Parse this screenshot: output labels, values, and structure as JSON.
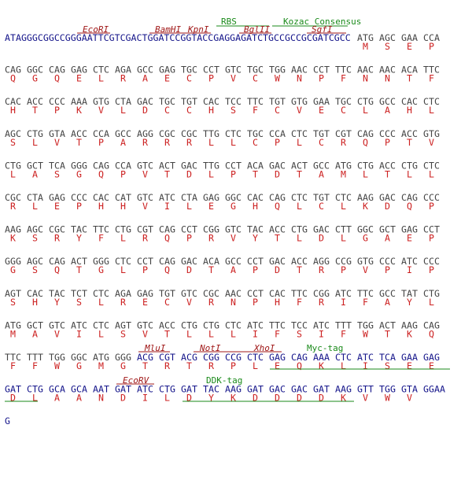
{
  "aa_color": "#cc2020",
  "annotations": [
    {
      "text": "RBS",
      "color": "#1a8a1a"
    },
    {
      "text": "Kozac Consensus",
      "color": "#1a8a1a"
    },
    {
      "text": "EcoRI",
      "color": "#a01818"
    },
    {
      "text": "BamHI",
      "color": "#a01818"
    },
    {
      "text": "KpnI",
      "color": "#a01818"
    },
    {
      "text": "BglII",
      "color": "#a01818"
    },
    {
      "text": "SgfI",
      "color": "#a01818"
    },
    {
      "text": "MluI",
      "color": "#a01818"
    },
    {
      "text": "NotI",
      "color": "#a01818"
    },
    {
      "text": "XhoI",
      "color": "#a01818"
    },
    {
      "text": "Myc-tag",
      "color": "#1a8a1a"
    },
    {
      "text": "EcoRV",
      "color": "#a01818"
    },
    {
      "text": "DDK-tag",
      "color": "#1a8a1a"
    }
  ],
  "lines": [
    {
      "segments": [
        {
          "color": "#14148a",
          "codons": [
            "ATAGGGCGGCCGGGAATTCGTCGACTGGATCCGGTACCGAGGAGATCTGCCGCCGCGATCGCC"
          ]
        },
        {
          "color": "#444444",
          "codons": [
            "ATG",
            "AGC",
            "GAA",
            "CCA"
          ]
        }
      ],
      "aa": [
        null,
        "M",
        "S",
        "E",
        "P"
      ]
    },
    {
      "segments": [
        {
          "color": "#444444",
          "codons": [
            "CAG",
            "GGC",
            "CAG",
            "GAG",
            "CTC",
            "AGA",
            "GCC",
            "GAG",
            "TGC",
            "CCT",
            "GTC",
            "TGC",
            "TGG",
            "AAC",
            "CCT",
            "TTC",
            "AAC",
            "AAC",
            "ACA",
            "TTC"
          ]
        }
      ],
      "aa": [
        "Q",
        "G",
        "Q",
        "E",
        "L",
        "R",
        "A",
        "E",
        "C",
        "P",
        "V",
        "C",
        "W",
        "N",
        "P",
        "F",
        "N",
        "N",
        "T",
        "F"
      ]
    },
    {
      "segments": [
        {
          "color": "#444444",
          "codons": [
            "CAC",
            "ACC",
            "CCC",
            "AAA",
            "GTG",
            "CTA",
            "GAC",
            "TGC",
            "TGT",
            "CAC",
            "TCC",
            "TTC",
            "TGT",
            "GTG",
            "GAA",
            "TGC",
            "CTG",
            "GCC",
            "CAC",
            "CTC"
          ]
        }
      ],
      "aa": [
        "H",
        "T",
        "P",
        "K",
        "V",
        "L",
        "D",
        "C",
        "C",
        "H",
        "S",
        "F",
        "C",
        "V",
        "E",
        "C",
        "L",
        "A",
        "H",
        "L"
      ]
    },
    {
      "segments": [
        {
          "color": "#444444",
          "codons": [
            "AGC",
            "CTG",
            "GTA",
            "ACC",
            "CCA",
            "GCC",
            "AGG",
            "CGC",
            "CGC",
            "TTG",
            "CTC",
            "TGC",
            "CCA",
            "CTC",
            "TGT",
            "CGT",
            "CAG",
            "CCC",
            "ACC",
            "GTG"
          ]
        }
      ],
      "aa": [
        "S",
        "L",
        "V",
        "T",
        "P",
        "A",
        "R",
        "R",
        "R",
        "L",
        "L",
        "C",
        "P",
        "L",
        "C",
        "R",
        "Q",
        "P",
        "T",
        "V"
      ]
    },
    {
      "segments": [
        {
          "color": "#444444",
          "codons": [
            "CTG",
            "GCT",
            "TCA",
            "GGG",
            "CAG",
            "CCA",
            "GTC",
            "ACT",
            "GAC",
            "TTG",
            "CCT",
            "ACA",
            "GAC",
            "ACT",
            "GCC",
            "ATG",
            "CTG",
            "ACC",
            "CTG",
            "CTC"
          ]
        }
      ],
      "aa": [
        "L",
        "A",
        "S",
        "G",
        "Q",
        "P",
        "V",
        "T",
        "D",
        "L",
        "P",
        "T",
        "D",
        "T",
        "A",
        "M",
        "L",
        "T",
        "L",
        "L"
      ]
    },
    {
      "segments": [
        {
          "color": "#444444",
          "codons": [
            "CGC",
            "CTA",
            "GAG",
            "CCC",
            "CAC",
            "CAT",
            "GTC",
            "ATC",
            "CTA",
            "GAG",
            "GGC",
            "CAC",
            "CAG",
            "CTC",
            "TGT",
            "CTC",
            "AAG",
            "GAC",
            "CAG",
            "CCC"
          ]
        }
      ],
      "aa": [
        "R",
        "L",
        "E",
        "P",
        "H",
        "H",
        "V",
        "I",
        "L",
        "E",
        "G",
        "H",
        "Q",
        "L",
        "C",
        "L",
        "K",
        "D",
        "Q",
        "P"
      ]
    },
    {
      "segments": [
        {
          "color": "#444444",
          "codons": [
            "AAG",
            "AGC",
            "CGC",
            "TAC",
            "TTC",
            "CTG",
            "CGT",
            "CAG",
            "CCT",
            "CGG",
            "GTC",
            "TAC",
            "ACC",
            "CTG",
            "GAC",
            "CTT",
            "GGC",
            "GCT",
            "GAG",
            "CCT"
          ]
        }
      ],
      "aa": [
        "K",
        "S",
        "R",
        "Y",
        "F",
        "L",
        "R",
        "Q",
        "P",
        "R",
        "V",
        "Y",
        "T",
        "L",
        "D",
        "L",
        "G",
        "A",
        "E",
        "P"
      ]
    },
    {
      "segments": [
        {
          "color": "#444444",
          "codons": [
            "GGG",
            "AGC",
            "CAG",
            "ACT",
            "GGG",
            "CTC",
            "CCT",
            "CAG",
            "GAC",
            "ACA",
            "GCC",
            "CCT",
            "GAC",
            "ACC",
            "AGG",
            "CCG",
            "GTG",
            "CCC",
            "ATC",
            "CCC"
          ]
        }
      ],
      "aa": [
        "G",
        "S",
        "Q",
        "T",
        "G",
        "L",
        "P",
        "Q",
        "D",
        "T",
        "A",
        "P",
        "D",
        "T",
        "R",
        "P",
        "V",
        "P",
        "I",
        "P"
      ]
    },
    {
      "segments": [
        {
          "color": "#444444",
          "codons": [
            "AGT",
            "CAC",
            "TAC",
            "TCT",
            "CTC",
            "AGA",
            "GAG",
            "TGT",
            "GTC",
            "CGC",
            "AAC",
            "CCT",
            "CAC",
            "TTC",
            "CGG",
            "ATC",
            "TTC",
            "GCC",
            "TAT",
            "CTG"
          ]
        }
      ],
      "aa": [
        "S",
        "H",
        "Y",
        "S",
        "L",
        "R",
        "E",
        "C",
        "V",
        "R",
        "N",
        "P",
        "H",
        "F",
        "R",
        "I",
        "F",
        "A",
        "Y",
        "L"
      ]
    },
    {
      "segments": [
        {
          "color": "#444444",
          "codons": [
            "ATG",
            "GCT",
            "GTC",
            "ATC",
            "CTC",
            "AGT",
            "GTC",
            "ACC",
            "CTG",
            "CTG",
            "CTC",
            "ATC",
            "TTC",
            "TCC",
            "ATC",
            "TTT",
            "TGG",
            "ACT",
            "AAG",
            "CAG"
          ]
        }
      ],
      "aa": [
        "M",
        "A",
        "V",
        "I",
        "L",
        "S",
        "V",
        "T",
        "L",
        "L",
        "L",
        "I",
        "F",
        "S",
        "I",
        "F",
        "W",
        "T",
        "K",
        "Q"
      ]
    },
    {
      "segments": [
        {
          "color": "#444444",
          "codons": [
            "TTC",
            "TTT",
            "TGG",
            "GGC",
            "ATG",
            "GGG"
          ]
        },
        {
          "color": "#14148a",
          "codons": [
            "ACG",
            "CGT",
            "ACG",
            "CGG",
            "CCG",
            "CTC",
            "GAG",
            "CAG",
            "AAA",
            "CTC",
            "ATC",
            "TCA",
            "GAA",
            "GAG"
          ]
        }
      ],
      "aa": [
        "F",
        "F",
        "W",
        "G",
        "M",
        "G",
        "T",
        "R",
        "T",
        "R",
        "P",
        "L",
        "E",
        "Q",
        "K",
        "L",
        "I",
        "S",
        "E",
        "E"
      ]
    },
    {
      "segments": [
        {
          "color": "#14148a",
          "codons": [
            "GAT",
            "CTG",
            "GCA",
            "GCA",
            "AAT",
            "GAT",
            "ATC",
            "CTG",
            "GAT",
            "TAC",
            "AAG",
            "GAT",
            "GAC",
            "GAC",
            "GAT",
            "AAG",
            "GTT",
            "TGG",
            "GTA",
            "GGAA"
          ]
        }
      ],
      "aa": [
        "D",
        "L",
        "A",
        "A",
        "N",
        "D",
        "I",
        "L",
        "D",
        "Y",
        "K",
        "D",
        "D",
        "D",
        "D",
        "K",
        "V",
        "W",
        "V",
        null
      ]
    },
    {
      "segments": [
        {
          "color": "#14148a",
          "codons": [
            "G"
          ]
        }
      ],
      "aa": [
        null
      ]
    }
  ]
}
